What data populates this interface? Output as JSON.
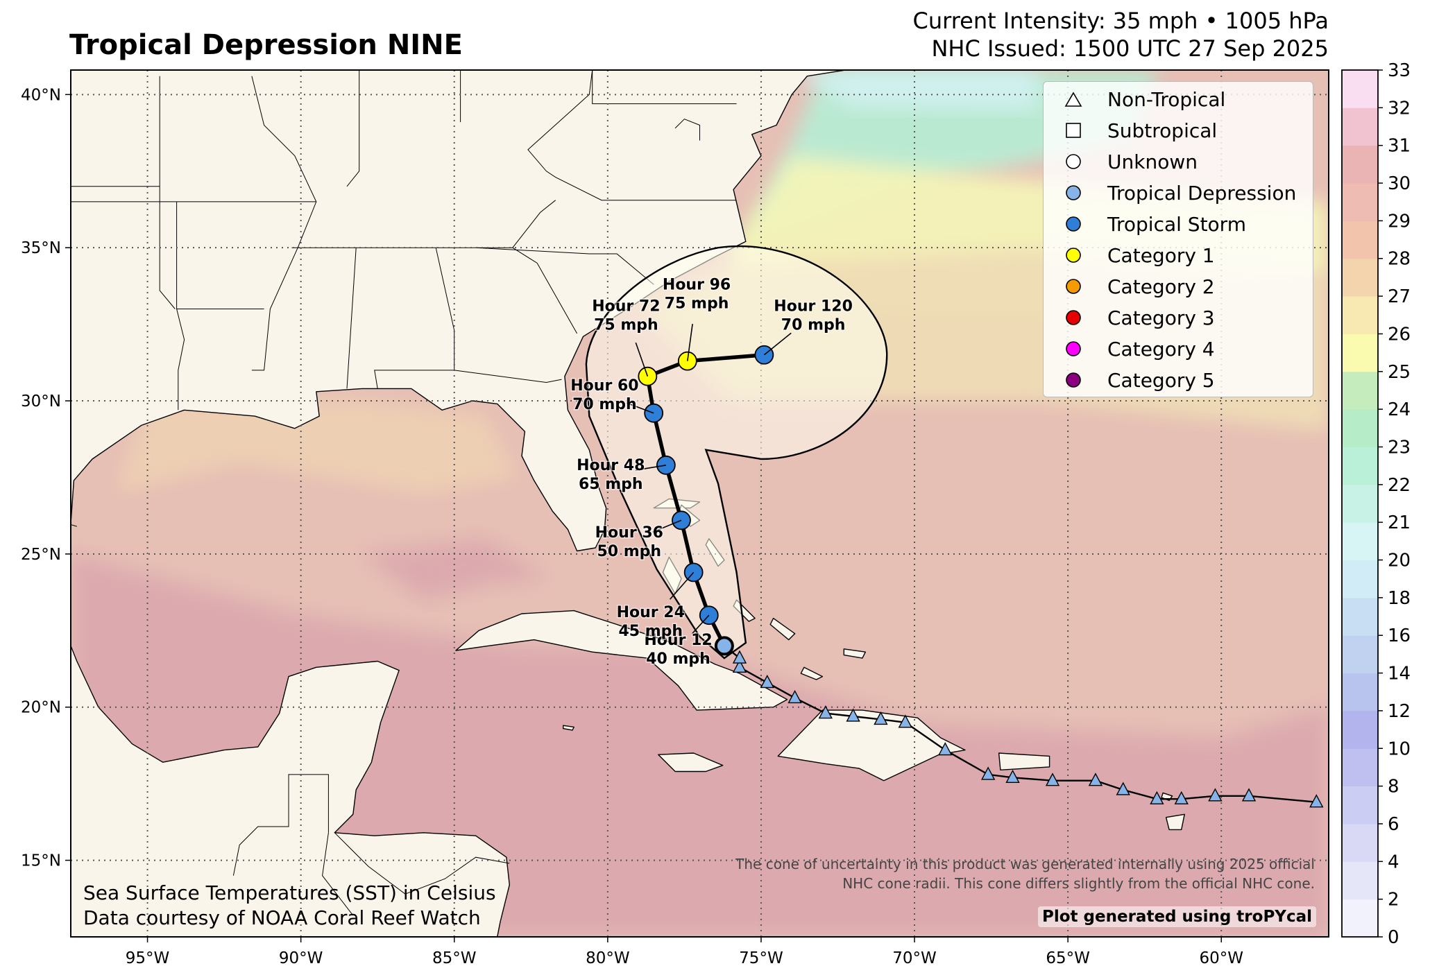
{
  "title": "Tropical Depression NINE",
  "header": {
    "intensity": "Current Intensity: 35 mph • 1005 hPa",
    "issued": "NHC Issued: 1500 UTC 27 Sep 2025"
  },
  "map": {
    "lon_range": [
      -97.5,
      -56.5
    ],
    "lat_range": [
      12.5,
      40.8
    ],
    "lon_ticks": [
      -95,
      -90,
      -85,
      -80,
      -75,
      -70,
      -65,
      -60
    ],
    "lon_tick_labels": [
      "95°W",
      "90°W",
      "85°W",
      "80°W",
      "75°W",
      "70°W",
      "65°W",
      "60°W"
    ],
    "lat_ticks": [
      15,
      20,
      25,
      30,
      35,
      40
    ],
    "lat_tick_labels": [
      "15°N",
      "20°N",
      "25°N",
      "30°N",
      "35°N",
      "40°N"
    ],
    "grid": "dotted",
    "land_color": "#faf5ea"
  },
  "colorbar": {
    "range": [
      0,
      33
    ],
    "tick_labels": [
      "0",
      "2",
      "4",
      "6",
      "8",
      "10",
      "12",
      "14",
      "16",
      "18",
      "20",
      "21",
      "22",
      "23",
      "24",
      "25",
      "26",
      "27",
      "28",
      "29",
      "30",
      "31",
      "32",
      "33"
    ],
    "colors": [
      "#ffffff",
      "#f2f2fc",
      "#e6e6f9",
      "#d9d9f6",
      "#cccdf3",
      "#bfc0f0",
      "#b3b4ed",
      "#b9c4ee",
      "#c0d2f0",
      "#c8dff3",
      "#d1ecf6",
      "#d6f5f4",
      "#c8f2e6",
      "#baefd8",
      "#b6ecc8",
      "#c4ecbc",
      "#fbfbb0",
      "#f8e9b2",
      "#f4d4ad",
      "#f2c4ab",
      "#eebcb2",
      "#ebb4b4",
      "#f1c2cf",
      "#f8def0"
    ]
  },
  "legend": [
    {
      "label": "Non-Tropical",
      "marker": "triangle",
      "color": "#ffffff"
    },
    {
      "label": "Subtropical",
      "marker": "square",
      "color": "#ffffff"
    },
    {
      "label": "Unknown",
      "marker": "circle",
      "color": "#ffffff"
    },
    {
      "label": "Tropical Depression",
      "marker": "circle",
      "color": "#87b4e8"
    },
    {
      "label": "Tropical Storm",
      "marker": "circle",
      "color": "#2f7fd9"
    },
    {
      "label": "Category 1",
      "marker": "circle",
      "color": "#ffff00"
    },
    {
      "label": "Category 2",
      "marker": "circle",
      "color": "#f59b00"
    },
    {
      "label": "Category 3",
      "marker": "circle",
      "color": "#e60000"
    },
    {
      "label": "Category 4",
      "marker": "circle",
      "color": "#ff00ff"
    },
    {
      "label": "Category 5",
      "marker": "circle",
      "color": "#8b0080"
    }
  ],
  "past_track": [
    {
      "lon": -56.9,
      "lat": 16.9
    },
    {
      "lon": -59.1,
      "lat": 17.1
    },
    {
      "lon": -60.2,
      "lat": 17.1
    },
    {
      "lon": -61.3,
      "lat": 17.0
    },
    {
      "lon": -62.1,
      "lat": 17.0
    },
    {
      "lon": -63.2,
      "lat": 17.3
    },
    {
      "lon": -64.1,
      "lat": 17.6
    },
    {
      "lon": -65.5,
      "lat": 17.6
    },
    {
      "lon": -66.8,
      "lat": 17.7
    },
    {
      "lon": -67.6,
      "lat": 17.8
    },
    {
      "lon": -69.0,
      "lat": 18.6
    },
    {
      "lon": -70.3,
      "lat": 19.5
    },
    {
      "lon": -71.1,
      "lat": 19.6
    },
    {
      "lon": -72.0,
      "lat": 19.7
    },
    {
      "lon": -72.9,
      "lat": 19.8
    },
    {
      "lon": -73.9,
      "lat": 20.3
    },
    {
      "lon": -74.8,
      "lat": 20.8
    },
    {
      "lon": -75.7,
      "lat": 21.3
    },
    {
      "lon": -75.7,
      "lat": 21.6
    },
    {
      "lon": -76.2,
      "lat": 22.0
    }
  ],
  "forecast": [
    {
      "lon": -76.2,
      "lat": 22.0,
      "category": "Tropical Depression",
      "label": ""
    },
    {
      "lon": -76.7,
      "lat": 23.0,
      "category": "Tropical Storm",
      "label": "Hour 12\n40 mph"
    },
    {
      "lon": -77.2,
      "lat": 24.4,
      "category": "Tropical Storm",
      "label": "Hour 24\n45 mph"
    },
    {
      "lon": -77.6,
      "lat": 26.1,
      "category": "Tropical Storm",
      "label": "Hour 36\n50 mph"
    },
    {
      "lon": -78.1,
      "lat": 27.9,
      "category": "Tropical Storm",
      "label": "Hour 48\n65 mph"
    },
    {
      "lon": -78.5,
      "lat": 29.6,
      "category": "Tropical Storm",
      "label": "Hour 60\n70 mph"
    },
    {
      "lon": -78.7,
      "lat": 30.8,
      "category": "Category 1",
      "label": "Hour 72\n75 mph"
    },
    {
      "lon": -77.4,
      "lat": 31.3,
      "category": "Category 1",
      "label": "Hour 96\n75 mph"
    },
    {
      "lon": -74.9,
      "lat": 31.5,
      "category": "Tropical Storm",
      "label": "Hour 120\n70 mph"
    }
  ],
  "credits": {
    "line1": "Sea Surface Temperatures (SST) in Celsius",
    "line2": "Data courtesy of NOAA Coral Reef Watch"
  },
  "note": {
    "line1": "The cone of uncertainty in this product was generated internally using 2025 official",
    "line2": "NHC cone radii. This cone differs slightly from the official NHC cone."
  },
  "generated": "Plot generated using troPYcal"
}
